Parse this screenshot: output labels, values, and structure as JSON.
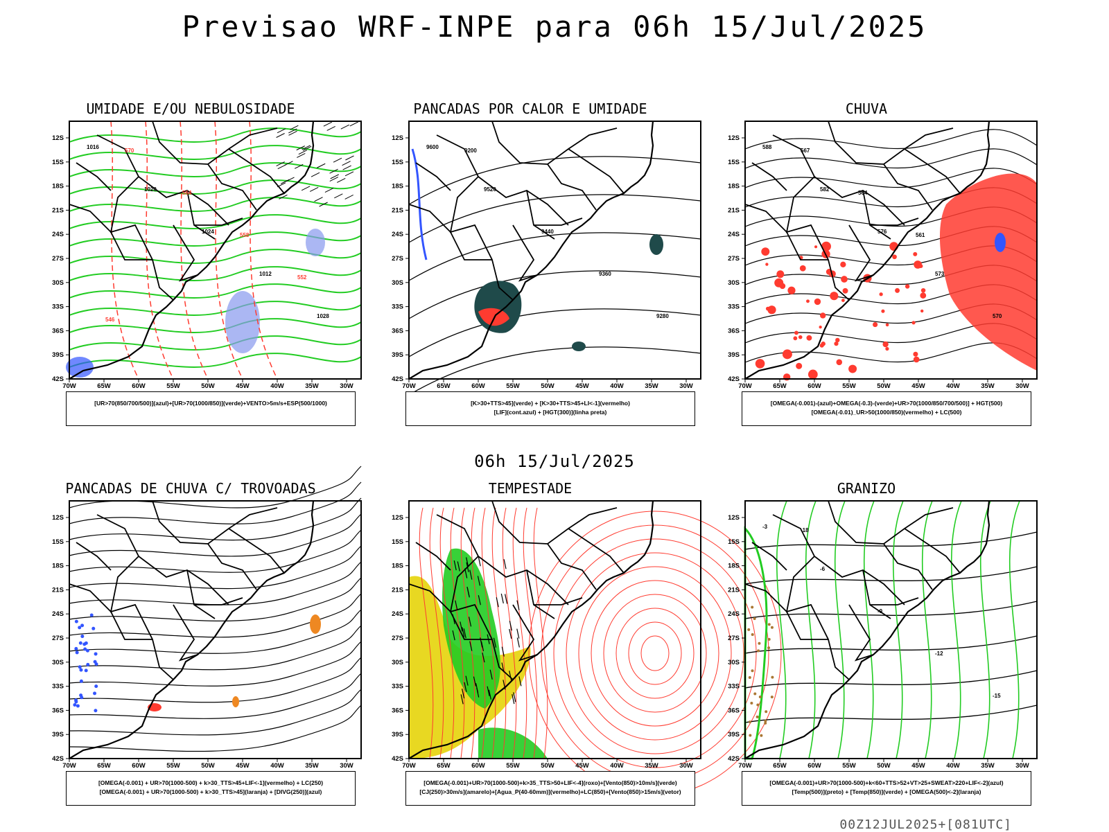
{
  "title": "Previsao WRF-INPE  para 06h 15/Jul/2025",
  "mid_title": "06h 15/Jul/2025",
  "footer": "00Z12JUL2025+[081UTC]",
  "axis": {
    "lat_ticks": [
      "12S",
      "15S",
      "18S",
      "21S",
      "24S",
      "27S",
      "30S",
      "33S",
      "36S",
      "39S",
      "42S"
    ],
    "lon_ticks": [
      "70W",
      "65W",
      "60W",
      "55W",
      "50W",
      "45W",
      "40W",
      "35W",
      "30W"
    ]
  },
  "colors": {
    "red": "#ff3b30",
    "green": "#22cc22",
    "blue": "#3355ff",
    "lightblue": "#8899ee",
    "orange": "#ee8822",
    "yellow": "#e8d822",
    "darkteal": "#1f4a4a",
    "brown": "#aa7733"
  },
  "panels": [
    {
      "id": "umidade",
      "title": "UMIDADE E/OU NEBULOSIDADE",
      "legend": [
        "[UR>70(850/700/500)](azul)+[UR>70(1000/850)](verde)+VENTO>5m/s+ESP(500/1000)"
      ],
      "contour_labels": [
        "1016",
        "1020",
        "1024",
        "1012",
        "1028",
        "570",
        "564",
        "558",
        "552",
        "546"
      ]
    },
    {
      "id": "pancadas",
      "title": "PANCADAS POR CALOR E UMIDADE",
      "legend": [
        "[K>30+TTS>45](verde) + [K>30+TTS>45+LI<-1](vermelho)",
        "[LIF](cont.azul) + [HGT(300)](linha preta)"
      ],
      "contour_labels": [
        "9600",
        "9520",
        "9440",
        "9360",
        "9280",
        "9200"
      ]
    },
    {
      "id": "chuva",
      "title": "CHUVA",
      "legend": [
        "[OMEGA(-0.001)-(azul)+OMEGA(-0.3)-(verde)+UR>70(1000/850/700/500)] + HGT(500)",
        "[OMEGA(-0.01)_UR>50(1000/850)(vermelho) + LC(500)"
      ],
      "contour_labels": [
        "588",
        "582",
        "576",
        "573",
        "570",
        "567",
        "564",
        "561"
      ]
    },
    {
      "id": "trovoadas",
      "title": "PANCADAS DE CHUVA C/ TROVOADAS",
      "legend": [
        "[OMEGA(-0.001) + UR>70(1000-500) + k>30_TTS>45+LIF<-1](vermelho) + LC(250)",
        "[OMEGA(-0.001) + UR>70(1000-500) + k>30_TTS>45](laranja) + [DIVG(250)](azul)"
      ],
      "contour_labels": []
    },
    {
      "id": "tempestade",
      "title": "TEMPESTADE",
      "legend": [
        "[OMEGA(-0.001)+UR>70(1000-500)+k>35_TTS>50+LIF<-4](roxo)+[Vento(850)>10m/s](verde)",
        "[CJ(250)>30m/s](amarelo)+[Agua_P(40-60mm)](vermelho)+LC(850)+[Vento(850)>15m/s](vetor)"
      ],
      "contour_labels": []
    },
    {
      "id": "granizo",
      "title": "GRANIZO",
      "legend": [
        "[OMEGA(-0.001)+UR>70(1000-500)+k<60+TTS>52+VT>25+SWEAT>220+LIF<-2](azul)",
        "[Temp(500)](preto) + [Temp(850)](verde) + [OMEGA(500)<-2](laranja)"
      ],
      "contour_labels": [
        "-3",
        "-6",
        "-9",
        "-12",
        "-15",
        "-18"
      ]
    }
  ]
}
